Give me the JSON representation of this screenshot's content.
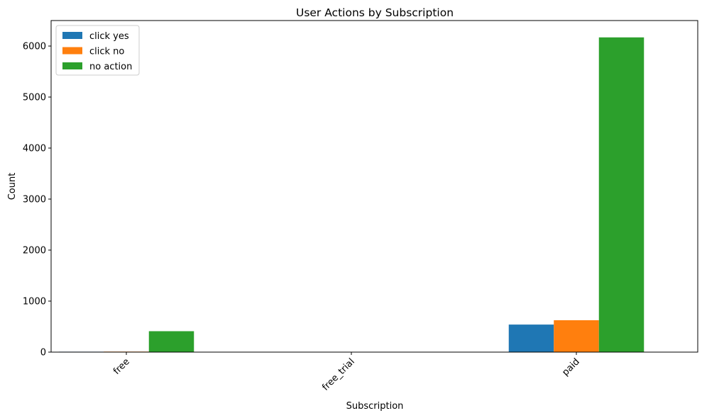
{
  "chart_data": {
    "type": "bar",
    "title": "User Actions by Subscription",
    "xlabel": "Subscription",
    "ylabel": "Count",
    "categories": [
      "free",
      "free_trial",
      "paid"
    ],
    "series": [
      {
        "name": "click yes",
        "color": "#1f77b4",
        "values": [
          8,
          0,
          540
        ]
      },
      {
        "name": "click no",
        "color": "#ff7f0e",
        "values": [
          10,
          0,
          625
        ]
      },
      {
        "name": "no action",
        "color": "#2ca02c",
        "values": [
          410,
          0,
          6170
        ]
      }
    ],
    "ylim": [
      0,
      6500
    ],
    "yticks": [
      0,
      1000,
      2000,
      3000,
      4000,
      5000,
      6000
    ],
    "ytick_labels": [
      "0",
      "1000",
      "2000",
      "3000",
      "4000",
      "5000",
      "6000"
    ],
    "grid": false,
    "legend_position": "top-left"
  }
}
